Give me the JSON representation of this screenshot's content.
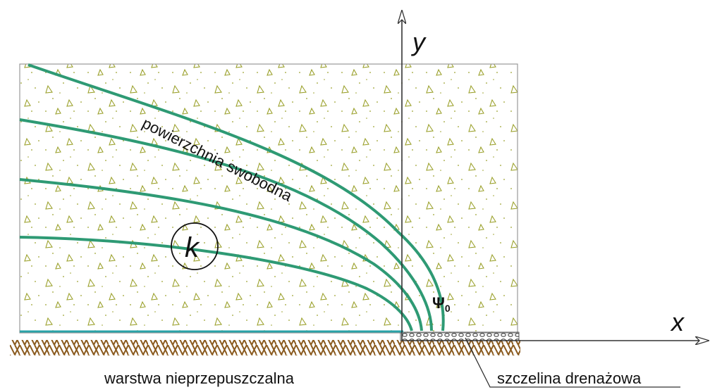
{
  "labels": {
    "axis_x": "x",
    "axis_y": "y",
    "free_surface": "powierzchnia swobodna",
    "permeability": "k",
    "psi": "Ψ",
    "psi_sub": "0",
    "impermeable_layer": "warstwa nieprzepuszczalna",
    "drain_slot": "szczelina drenażowa"
  },
  "colors": {
    "streamline": "#2e9a74",
    "base_line": "#2aa3a8",
    "soil_dots": "#9aa02a",
    "hatch": "#8a5a1e",
    "axis": "#333333"
  }
}
